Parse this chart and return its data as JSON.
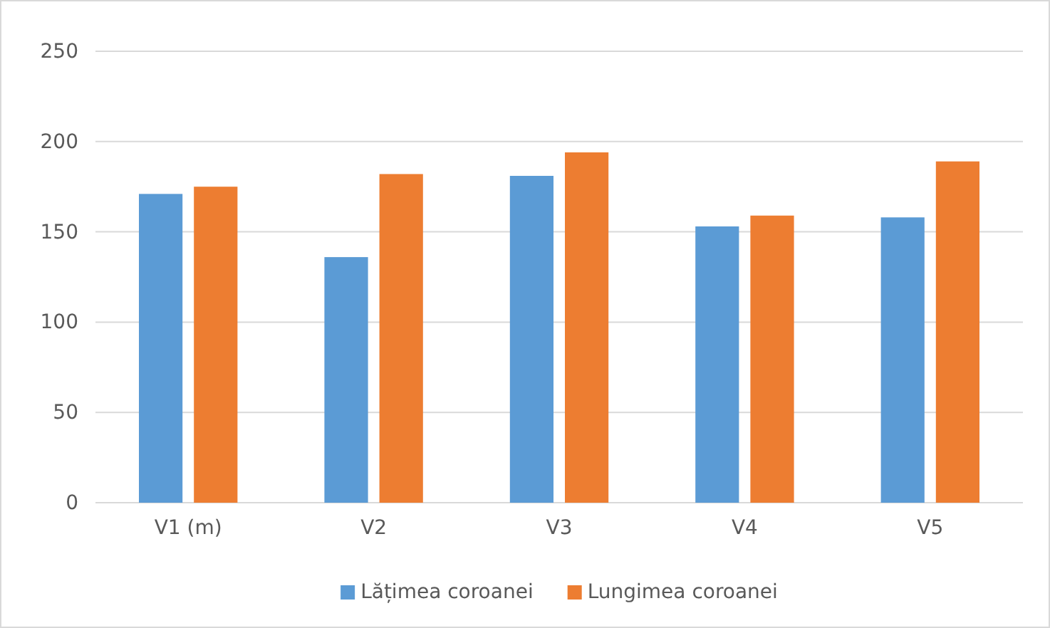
{
  "chart_data": {
    "type": "bar",
    "categories": [
      "V1 (m)",
      "V2",
      "V3",
      "V4",
      "V5"
    ],
    "series": [
      {
        "name": "Lățimea coroanei",
        "color": "#5b9bd5",
        "values": [
          171,
          136,
          181,
          153,
          158
        ]
      },
      {
        "name": "Lungimea coroanei",
        "color": "#ed7d31",
        "values": [
          175,
          182,
          194,
          159,
          189
        ]
      }
    ],
    "ylim": [
      0,
      250
    ],
    "yticks": [
      0,
      50,
      100,
      150,
      200,
      250
    ],
    "grid": "y",
    "legend": "bottom"
  }
}
